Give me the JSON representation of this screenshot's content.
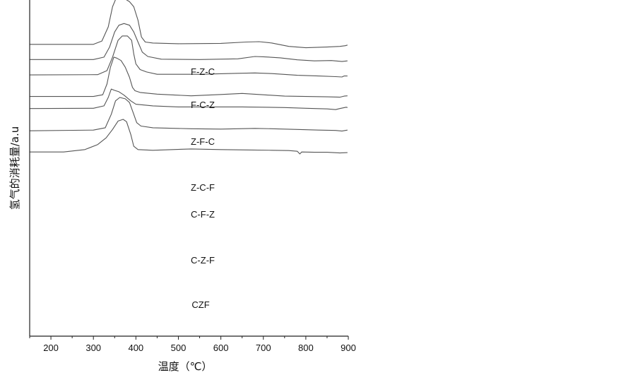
{
  "chart_data": {
    "type": "line",
    "title": "",
    "xlabel": "温度（℃）",
    "ylabel": "氢气的消耗量/a.u",
    "xlim": [
      150,
      900
    ],
    "x_ticks": [
      200,
      300,
      400,
      500,
      600,
      700,
      800,
      900
    ],
    "y_ticks_shown": false,
    "grid": false,
    "legend": "none",
    "line_color": "#555555",
    "series": [
      {
        "name": "F-Z-C",
        "points": [
          [
            150,
            0.132
          ],
          [
            300,
            0.132
          ],
          [
            320,
            0.122
          ],
          [
            335,
            0.08
          ],
          [
            345,
            0.02
          ],
          [
            355,
            -0.01
          ],
          [
            362,
            -0.01
          ],
          [
            372,
            -0.005
          ],
          [
            385,
            0.005
          ],
          [
            395,
            0.02
          ],
          [
            405,
            0.06
          ],
          [
            413,
            0.11
          ],
          [
            422,
            0.125
          ],
          [
            440,
            0.128
          ],
          [
            500,
            0.13
          ],
          [
            600,
            0.129
          ],
          [
            660,
            0.125
          ],
          [
            690,
            0.124
          ],
          [
            720,
            0.128
          ],
          [
            760,
            0.138
          ],
          [
            800,
            0.142
          ],
          [
            850,
            0.14
          ],
          [
            880,
            0.138
          ],
          [
            893,
            0.136
          ],
          [
            898,
            0.134
          ]
        ]
      },
      {
        "name": "F-C-Z",
        "points": [
          [
            150,
            0.177
          ],
          [
            300,
            0.177
          ],
          [
            325,
            0.17
          ],
          [
            338,
            0.14
          ],
          [
            350,
            0.095
          ],
          [
            360,
            0.075
          ],
          [
            372,
            0.07
          ],
          [
            385,
            0.075
          ],
          [
            395,
            0.095
          ],
          [
            405,
            0.125
          ],
          [
            415,
            0.155
          ],
          [
            428,
            0.168
          ],
          [
            460,
            0.176
          ],
          [
            550,
            0.177
          ],
          [
            640,
            0.175
          ],
          [
            680,
            0.168
          ],
          [
            700,
            0.169
          ],
          [
            740,
            0.172
          ],
          [
            780,
            0.178
          ],
          [
            820,
            0.181
          ],
          [
            860,
            0.18
          ],
          [
            885,
            0.183
          ],
          [
            898,
            0.181
          ]
        ]
      },
      {
        "name": "Z-F-C",
        "points": [
          [
            150,
            0.223
          ],
          [
            310,
            0.222
          ],
          [
            332,
            0.21
          ],
          [
            345,
            0.17
          ],
          [
            358,
            0.12
          ],
          [
            368,
            0.107
          ],
          [
            380,
            0.107
          ],
          [
            390,
            0.12
          ],
          [
            395,
            0.16
          ],
          [
            400,
            0.19
          ],
          [
            410,
            0.207
          ],
          [
            425,
            0.214
          ],
          [
            450,
            0.221
          ],
          [
            550,
            0.221
          ],
          [
            640,
            0.218
          ],
          [
            680,
            0.217
          ],
          [
            720,
            0.219
          ],
          [
            780,
            0.224
          ],
          [
            830,
            0.226
          ],
          [
            870,
            0.228
          ],
          [
            885,
            0.229
          ],
          [
            890,
            0.226
          ],
          [
            898,
            0.226
          ]
        ]
      },
      {
        "name": "Z-C-F",
        "points": [
          [
            150,
            0.287
          ],
          [
            300,
            0.287
          ],
          [
            322,
            0.282
          ],
          [
            332,
            0.25
          ],
          [
            340,
            0.2
          ],
          [
            348,
            0.17
          ],
          [
            355,
            0.173
          ],
          [
            365,
            0.18
          ],
          [
            375,
            0.2
          ],
          [
            385,
            0.23
          ],
          [
            392,
            0.26
          ],
          [
            398,
            0.27
          ],
          [
            410,
            0.275
          ],
          [
            450,
            0.28
          ],
          [
            530,
            0.285
          ],
          [
            600,
            0.281
          ],
          [
            650,
            0.278
          ],
          [
            700,
            0.282
          ],
          [
            750,
            0.286
          ],
          [
            800,
            0.287
          ],
          [
            850,
            0.288
          ],
          [
            880,
            0.289
          ],
          [
            890,
            0.286
          ],
          [
            898,
            0.285
          ]
        ]
      },
      {
        "name": "C-F-Z",
        "points": [
          [
            150,
            0.323
          ],
          [
            300,
            0.322
          ],
          [
            325,
            0.315
          ],
          [
            335,
            0.29
          ],
          [
            342,
            0.265
          ],
          [
            350,
            0.269
          ],
          [
            360,
            0.273
          ],
          [
            372,
            0.283
          ],
          [
            388,
            0.3
          ],
          [
            400,
            0.31
          ],
          [
            440,
            0.315
          ],
          [
            500,
            0.318
          ],
          [
            600,
            0.318
          ],
          [
            650,
            0.318
          ],
          [
            700,
            0.319
          ],
          [
            750,
            0.32
          ],
          [
            800,
            0.322
          ],
          [
            850,
            0.324
          ],
          [
            870,
            0.326
          ],
          [
            880,
            0.323
          ],
          [
            895,
            0.319
          ],
          [
            898,
            0.32
          ]
        ]
      },
      {
        "name": "C-Z-F",
        "points": [
          [
            150,
            0.389
          ],
          [
            300,
            0.387
          ],
          [
            328,
            0.38
          ],
          [
            342,
            0.34
          ],
          [
            352,
            0.3
          ],
          [
            362,
            0.29
          ],
          [
            375,
            0.294
          ],
          [
            385,
            0.305
          ],
          [
            395,
            0.34
          ],
          [
            402,
            0.365
          ],
          [
            412,
            0.375
          ],
          [
            440,
            0.38
          ],
          [
            530,
            0.383
          ],
          [
            600,
            0.384
          ],
          [
            680,
            0.382
          ],
          [
            720,
            0.383
          ],
          [
            780,
            0.385
          ],
          [
            830,
            0.387
          ],
          [
            870,
            0.388
          ],
          [
            885,
            0.39
          ],
          [
            898,
            0.387
          ]
        ]
      },
      {
        "name": "CZF",
        "points": [
          [
            150,
            0.452
          ],
          [
            230,
            0.452
          ],
          [
            280,
            0.445
          ],
          [
            310,
            0.43
          ],
          [
            330,
            0.41
          ],
          [
            345,
            0.385
          ],
          [
            358,
            0.36
          ],
          [
            370,
            0.355
          ],
          [
            378,
            0.362
          ],
          [
            388,
            0.4
          ],
          [
            395,
            0.435
          ],
          [
            405,
            0.445
          ],
          [
            440,
            0.447
          ],
          [
            530,
            0.443
          ],
          [
            600,
            0.445
          ],
          [
            660,
            0.446
          ],
          [
            720,
            0.447
          ],
          [
            760,
            0.448
          ],
          [
            780,
            0.45
          ],
          [
            786,
            0.458
          ],
          [
            790,
            0.452
          ],
          [
            820,
            0.453
          ],
          [
            850,
            0.453
          ],
          [
            880,
            0.455
          ],
          [
            898,
            0.454
          ]
        ]
      }
    ]
  }
}
